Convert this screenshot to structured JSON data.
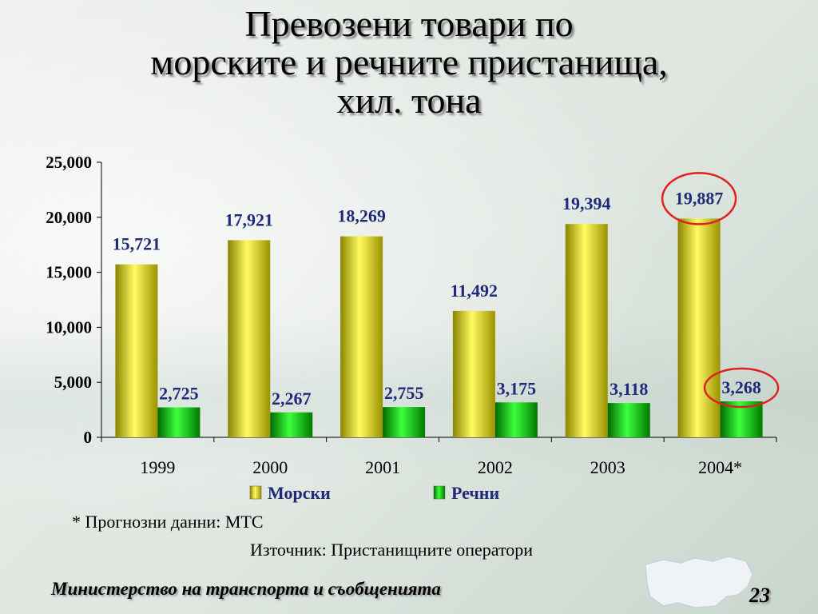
{
  "slide": {
    "title_lines": [
      "Превозени товари по",
      "морските и речните пристанища,",
      "хил. тона"
    ],
    "footnote": "* Прогнозни данни: МТС",
    "source": "Източник: Пристанищните оператори",
    "ministry": "Министерство на транспорта и съобщенията",
    "page_number": "23",
    "map_icon": "bulgaria-map-icon"
  },
  "colors": {
    "sea_bar": "#e8e000",
    "river_bar": "#00c800",
    "value_label": "#1f2a7a",
    "highlight_circle": "#e02020"
  },
  "chart_data": {
    "type": "bar",
    "categories": [
      "1999",
      "2000",
      "2001",
      "2002",
      "2003",
      "2004*"
    ],
    "series": [
      {
        "name": "Морски",
        "values": [
          15721,
          17921,
          18269,
          11492,
          19394,
          19887
        ],
        "labels": [
          "15,721",
          "17,921",
          "18,269",
          "11,492",
          "19,394",
          "19,887"
        ]
      },
      {
        "name": "Речни",
        "values": [
          2725,
          2267,
          2755,
          3175,
          3118,
          3268
        ],
        "labels": [
          "2,725",
          "2,267",
          "2,755",
          "3,175",
          "3,118",
          "3,268"
        ]
      }
    ],
    "ylim": [
      0,
      25000
    ],
    "yticks": [
      0,
      5000,
      10000,
      15000,
      20000,
      25000
    ],
    "ytick_labels": [
      "0",
      "5,000",
      "10,000",
      "15,000",
      "20,000",
      "25,000"
    ],
    "legend_position": "bottom",
    "grid": false,
    "highlighted_category": "2004*"
  }
}
